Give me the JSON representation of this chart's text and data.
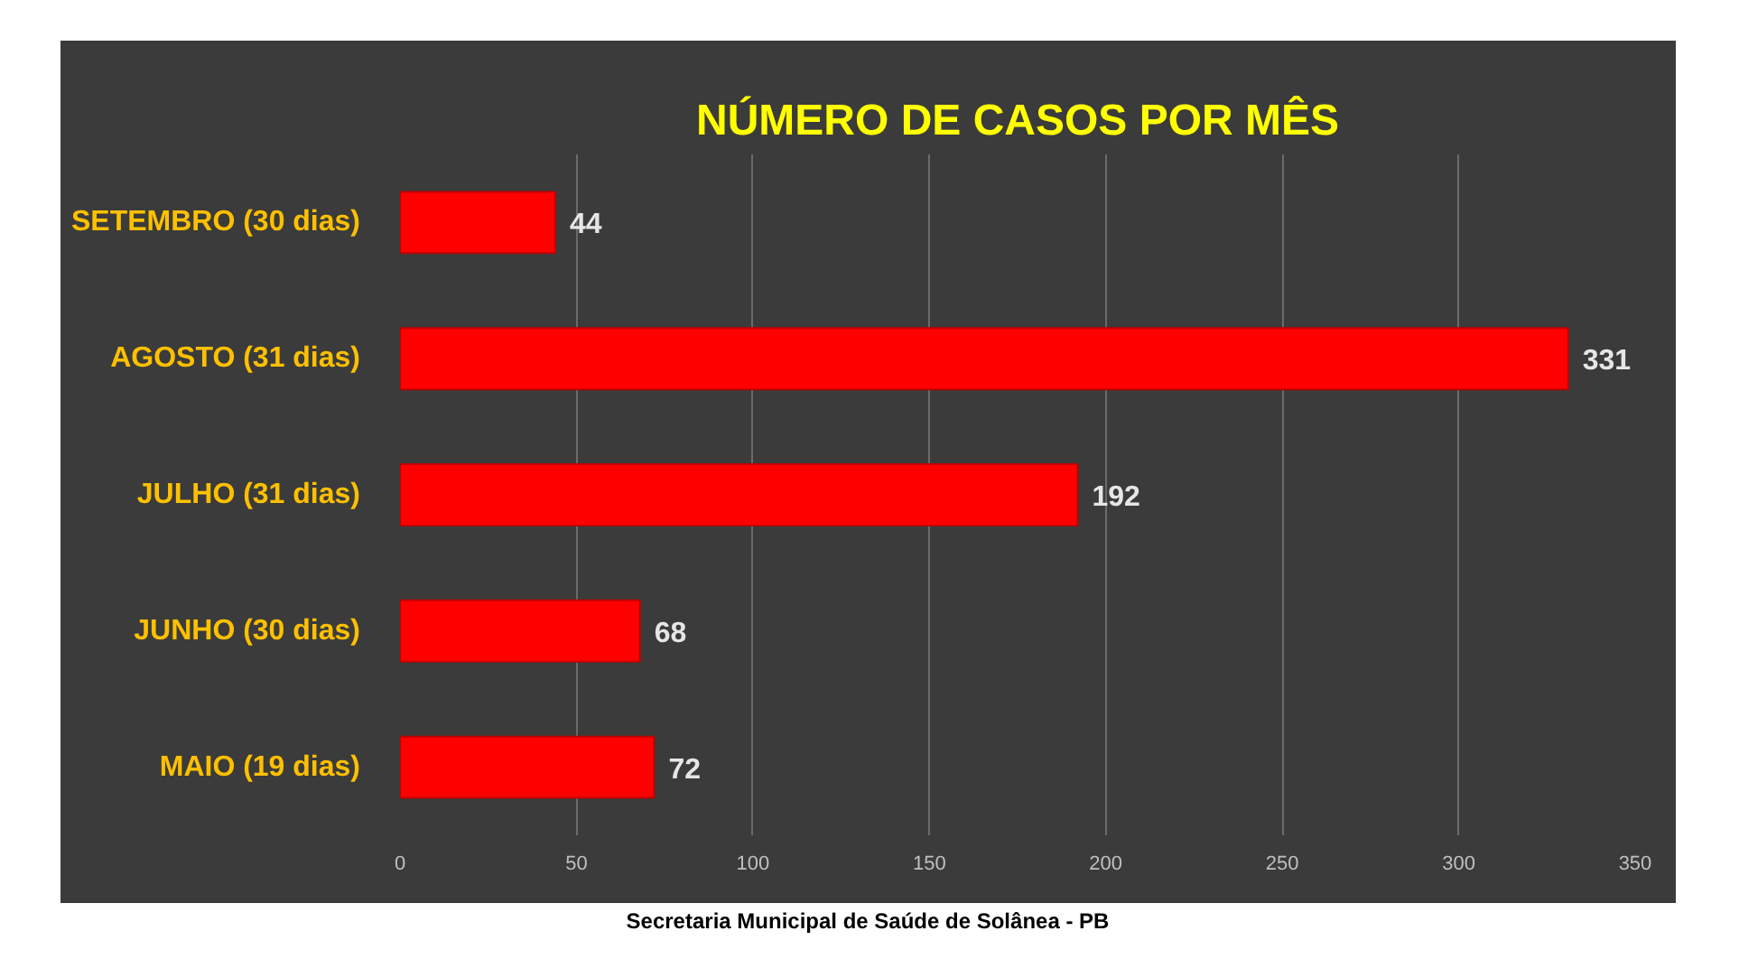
{
  "chart_data": {
    "type": "bar",
    "orientation": "horizontal",
    "title": "NÚMERO DE CASOS POR MÊS",
    "categories": [
      "SETEMBRO (30 dias)",
      "AGOSTO (31 dias)",
      "JULHO (31 dias)",
      "JUNHO (30 dias)",
      "MAIO (19 dias)"
    ],
    "values": [
      44,
      331,
      192,
      68,
      72
    ],
    "color": "#ff0000",
    "data_labels": true,
    "xlim": [
      0,
      350
    ],
    "xticks": [
      0,
      50,
      100,
      150,
      200,
      250,
      300,
      350
    ],
    "grid": "x",
    "annotations": [
      "Secretaria Municipal de Saúde de Solânea - PB"
    ]
  }
}
